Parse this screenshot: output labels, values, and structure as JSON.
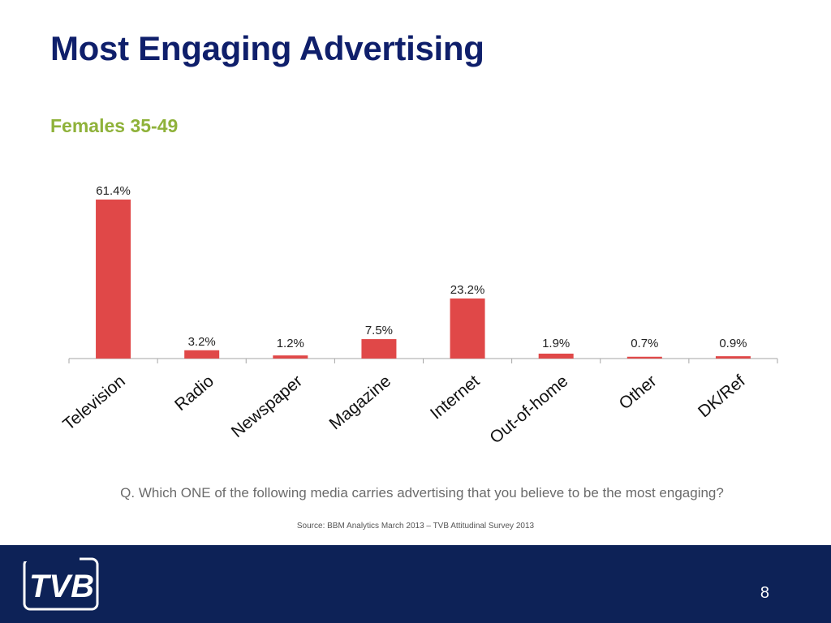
{
  "slide": {
    "title": "Most Engaging Advertising",
    "subtitle": "Females 35-49",
    "question": "Q. Which ONE of the following media carries advertising that you believe to be the most engaging?",
    "source": "Source: BBM Analytics March 2013 – TVB Attitudinal Survey 2013",
    "page_number": "8",
    "logo_text": "TVB",
    "footer_color": "#0d2257"
  },
  "chart_data": {
    "type": "bar",
    "title": "",
    "xlabel": "",
    "ylabel": "",
    "categories": [
      "Television",
      "Radio",
      "Newspaper",
      "Magazine",
      "Internet",
      "Out-of-home",
      "Other",
      "DK/Ref"
    ],
    "values": [
      61.4,
      3.2,
      1.2,
      7.5,
      23.2,
      1.9,
      0.7,
      0.9
    ],
    "data_labels": [
      "61.4%",
      "3.2%",
      "1.2%",
      "7.5%",
      "23.2%",
      "1.9%",
      "0.7%",
      "0.9%"
    ],
    "ylim": [
      0,
      61.4
    ],
    "bar_color": "#e04848",
    "grid": false,
    "legend": false
  }
}
